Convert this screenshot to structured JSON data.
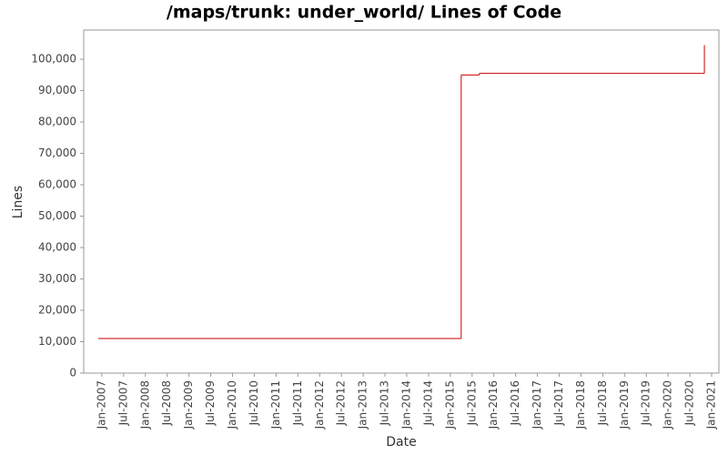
{
  "chart_data": {
    "type": "line",
    "step": true,
    "title": "/maps/trunk: under_world/ Lines of Code",
    "x_label": "Date",
    "y_label": "Lines",
    "x": [
      "2006-12",
      "2015-04",
      "2015-09",
      "2020-11"
    ],
    "values": [
      11000,
      95000,
      95500,
      104500
    ],
    "color": "#cc0000",
    "xlim": [
      "2006-08",
      "2021-03"
    ],
    "xticks": [
      {
        "value": "2007-01",
        "label": "Jan-2007"
      },
      {
        "value": "2007-07",
        "label": "Jul-2007"
      },
      {
        "value": "2008-01",
        "label": "Jan-2008"
      },
      {
        "value": "2008-07",
        "label": "Jul-2008"
      },
      {
        "value": "2009-01",
        "label": "Jan-2009"
      },
      {
        "value": "2009-07",
        "label": "Jul-2009"
      },
      {
        "value": "2010-01",
        "label": "Jan-2010"
      },
      {
        "value": "2010-07",
        "label": "Jul-2010"
      },
      {
        "value": "2011-01",
        "label": "Jan-2011"
      },
      {
        "value": "2011-07",
        "label": "Jul-2011"
      },
      {
        "value": "2012-01",
        "label": "Jan-2012"
      },
      {
        "value": "2012-07",
        "label": "Jul-2012"
      },
      {
        "value": "2013-01",
        "label": "Jan-2013"
      },
      {
        "value": "2013-07",
        "label": "Jul-2013"
      },
      {
        "value": "2014-01",
        "label": "Jan-2014"
      },
      {
        "value": "2014-07",
        "label": "Jul-2014"
      },
      {
        "value": "2015-01",
        "label": "Jan-2015"
      },
      {
        "value": "2015-07",
        "label": "Jul-2015"
      },
      {
        "value": "2016-01",
        "label": "Jan-2016"
      },
      {
        "value": "2016-07",
        "label": "Jul-2016"
      },
      {
        "value": "2017-01",
        "label": "Jan-2017"
      },
      {
        "value": "2017-07",
        "label": "Jul-2017"
      },
      {
        "value": "2018-01",
        "label": "Jan-2018"
      },
      {
        "value": "2018-07",
        "label": "Jul-2018"
      },
      {
        "value": "2019-01",
        "label": "Jan-2019"
      },
      {
        "value": "2019-07",
        "label": "Jul-2019"
      },
      {
        "value": "2020-01",
        "label": "Jan-2020"
      },
      {
        "value": "2020-07",
        "label": "Jul-2020"
      },
      {
        "value": "2021-01",
        "label": "Jan-2021"
      }
    ],
    "ylim": [
      0,
      109300
    ],
    "yticks": [
      0,
      {
        "value": 10000,
        "label": "10,000"
      },
      {
        "value": 20000,
        "label": "20,000"
      },
      {
        "value": 30000,
        "label": "30,000"
      },
      {
        "value": 40000,
        "label": "40,000"
      },
      {
        "value": 50000,
        "label": "50,000"
      },
      {
        "value": 60000,
        "label": "60,000"
      },
      {
        "value": 70000,
        "label": "70,000"
      },
      {
        "value": 80000,
        "label": "80,000"
      },
      {
        "value": 90000,
        "label": "90,000"
      },
      {
        "value": 100000,
        "label": "100,000"
      }
    ],
    "grid": false
  }
}
